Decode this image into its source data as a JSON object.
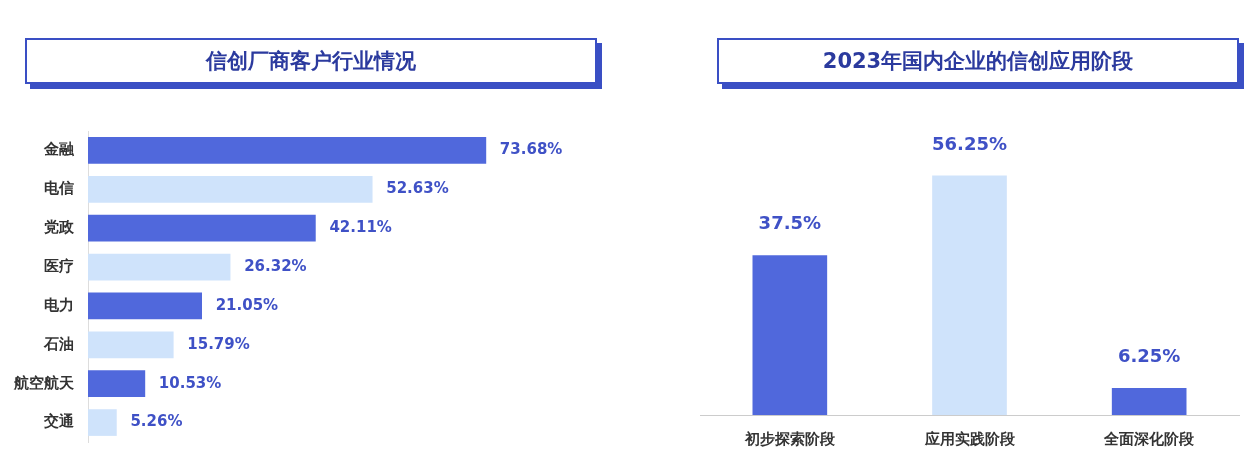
{
  "chart_data": [
    {
      "type": "bar",
      "title": "信创厂商客户行业情况",
      "orientation": "horizontal",
      "grid": false,
      "legend": false,
      "categories": [
        "金融",
        "电信",
        "党政",
        "医疗",
        "电力",
        "石油",
        "航空航天",
        "交通"
      ],
      "values": [
        73.68,
        52.63,
        42.11,
        26.32,
        21.05,
        15.79,
        10.53,
        5.26
      ],
      "colors": [
        "#5068dc",
        "#cfe3fb",
        "#5068dc",
        "#cfe3fb",
        "#5068dc",
        "#cfe3fb",
        "#5068dc",
        "#cfe3fb"
      ],
      "value_labels": [
        "73.68%",
        "52.63%",
        "42.11%",
        "26.32%",
        "21.05%",
        "15.79%",
        "10.53%",
        "5.26%"
      ]
    },
    {
      "type": "bar",
      "title": "2023年国内企业的信创应用阶段",
      "grid": false,
      "legend": false,
      "categories": [
        "初步探索阶段",
        "应用实践阶段",
        "全面深化阶段"
      ],
      "values": [
        37.5,
        56.25,
        6.25
      ],
      "colors": [
        "#5068dc",
        "#cfe3fb",
        "#5068dc"
      ],
      "value_labels": [
        "37.5%",
        "56.25%",
        "6.25%"
      ]
    }
  ]
}
